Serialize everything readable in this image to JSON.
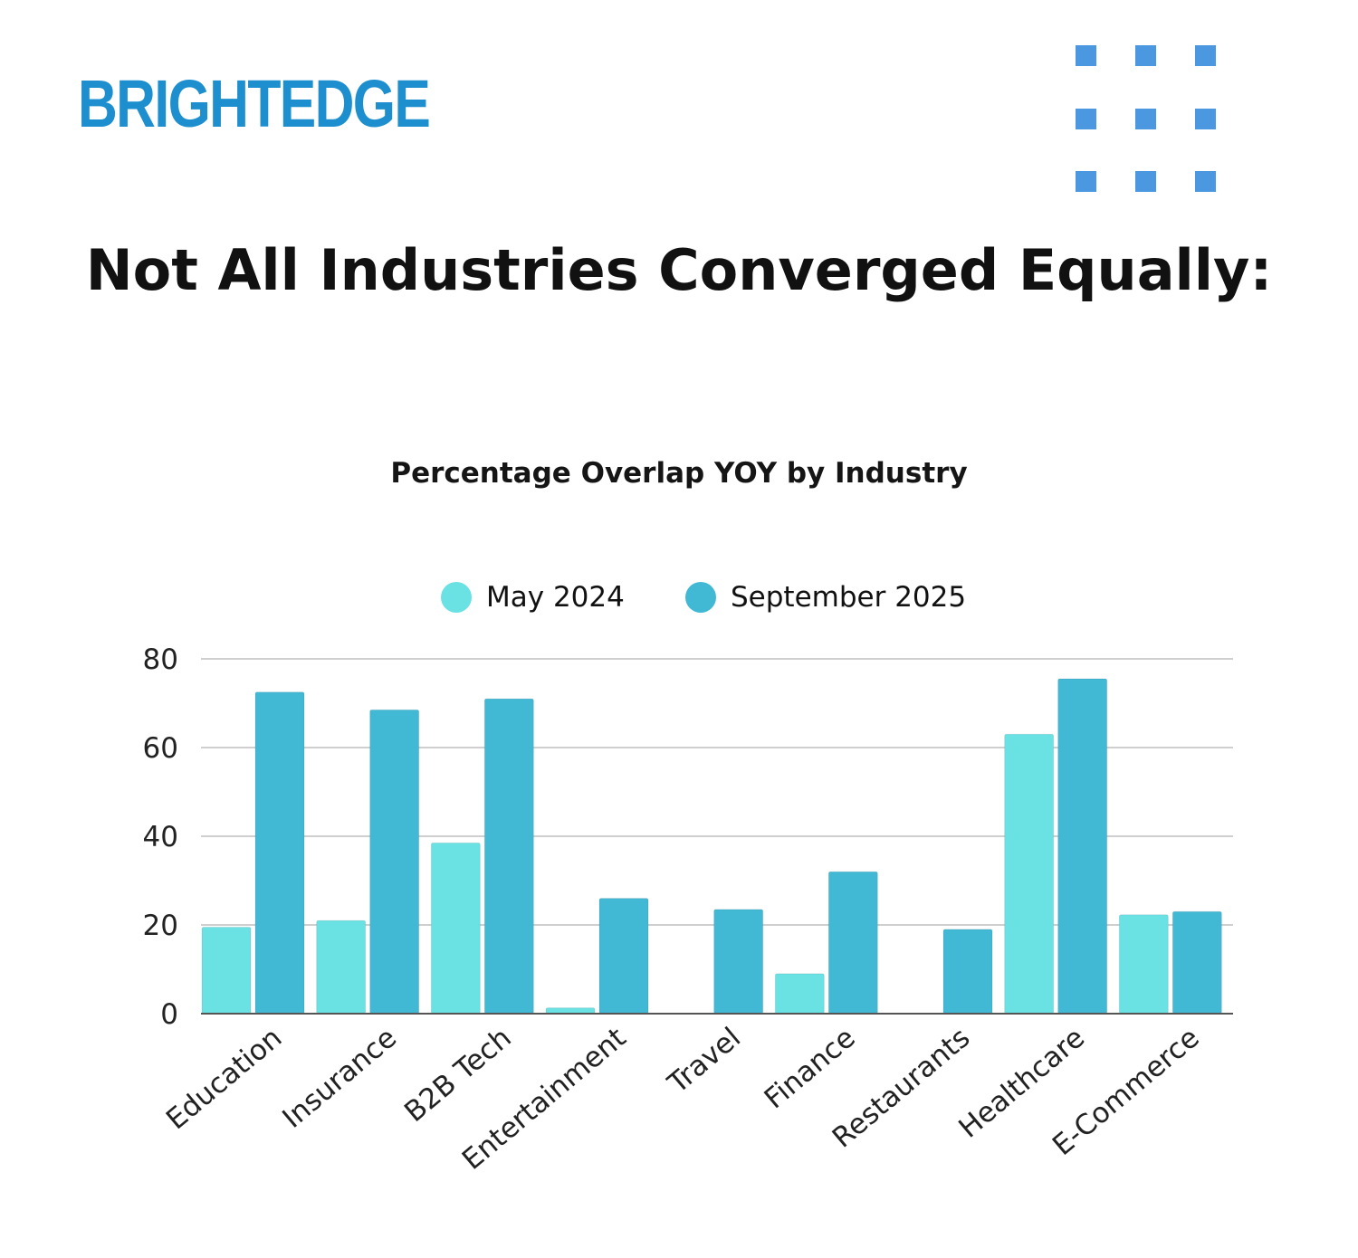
{
  "header": {
    "logo_text": "BRIGHTEDGE",
    "headline": "Not All Industries Converged Equally:"
  },
  "decoration": {
    "dot_grid_icon": "dot-grid-icon",
    "dot_color": "#4b98e0"
  },
  "chart_data": {
    "type": "bar",
    "title": "Percentage Overlap YOY by Industry",
    "categories": [
      "Education",
      "Insurance",
      "B2B Tech",
      "Entertainment",
      "Travel",
      "Finance",
      "Restaurants",
      "Healthcare",
      "E-Commerce"
    ],
    "series": [
      {
        "name": "May 2024",
        "color": "#6ae1e3",
        "values": [
          19.5,
          21,
          38.5,
          1.3,
          0,
          9,
          0,
          63,
          22.3
        ]
      },
      {
        "name": "September 2025",
        "color": "#41b8d4",
        "values": [
          72.5,
          68.5,
          71,
          26,
          23.5,
          32,
          19,
          75.5,
          23
        ]
      }
    ],
    "ylim": [
      0,
      80
    ],
    "yticks": [
      0,
      20,
      40,
      60,
      80
    ],
    "xlabel": "",
    "ylabel": "",
    "grid": true,
    "legend_position": "top"
  }
}
